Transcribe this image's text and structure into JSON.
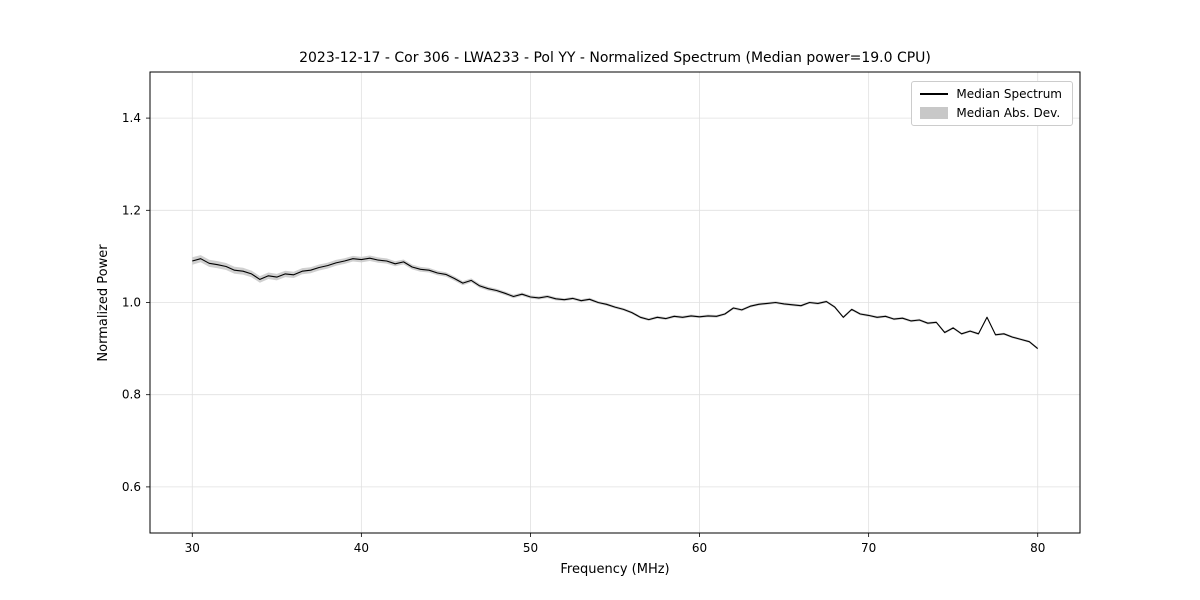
{
  "figure": {
    "title": "2023-12-17 - Cor 306 - LWA233 - Pol YY - Normalized Spectrum (Median power=19.0 CPU)",
    "xlabel": "Frequency (MHz)",
    "ylabel": "Normalized Power"
  },
  "legend": {
    "entries": [
      {
        "label": "Median Spectrum",
        "type": "line",
        "color": "#000000"
      },
      {
        "label": "Median Abs. Dev.",
        "type": "patch",
        "color": "#c8c8c8"
      }
    ]
  },
  "chart_data": {
    "type": "line",
    "title": "2023-12-17 - Cor 306 - LWA233 - Pol YY - Normalized Spectrum (Median power=19.0 CPU)",
    "xlabel": "Frequency (MHz)",
    "ylabel": "Normalized Power",
    "xlim": [
      27.5,
      82.5
    ],
    "ylim": [
      0.5,
      1.5
    ],
    "xticks": [
      30,
      40,
      50,
      60,
      70,
      80
    ],
    "yticks": [
      0.6,
      0.8,
      1.0,
      1.2,
      1.4
    ],
    "grid": true,
    "grid_color": "#e0e0e0",
    "line_color": "#000000",
    "band_color": "#c8c8c8",
    "series": [
      {
        "name": "Median Spectrum",
        "x_start": 30.0,
        "x_step": 0.5,
        "y": [
          1.09,
          1.095,
          1.085,
          1.082,
          1.078,
          1.07,
          1.068,
          1.062,
          1.05,
          1.058,
          1.055,
          1.062,
          1.06,
          1.068,
          1.07,
          1.076,
          1.08,
          1.086,
          1.09,
          1.095,
          1.093,
          1.096,
          1.092,
          1.09,
          1.084,
          1.088,
          1.077,
          1.072,
          1.07,
          1.064,
          1.061,
          1.052,
          1.042,
          1.048,
          1.036,
          1.03,
          1.026,
          1.02,
          1.013,
          1.018,
          1.012,
          1.01,
          1.013,
          1.008,
          1.006,
          1.009,
          1.004,
          1.007,
          1.0,
          0.996,
          0.99,
          0.985,
          0.978,
          0.968,
          0.963,
          0.968,
          0.965,
          0.97,
          0.968,
          0.971,
          0.969,
          0.971,
          0.97,
          0.975,
          0.988,
          0.984,
          0.992,
          0.996,
          0.998,
          1.0,
          0.997,
          0.995,
          0.993,
          1.0,
          0.998,
          1.002,
          0.99,
          0.968,
          0.985,
          0.975,
          0.972,
          0.968,
          0.97,
          0.964,
          0.966,
          0.96,
          0.962,
          0.955,
          0.957,
          0.935,
          0.945,
          0.932,
          0.938,
          0.932,
          0.968,
          0.93,
          0.932,
          0.925,
          0.92,
          0.915,
          0.9
        ]
      }
    ],
    "band": {
      "name": "Median Abs. Dev.",
      "x": [
        30,
        40,
        50,
        55,
        80
      ],
      "halfwidth": [
        0.008,
        0.006,
        0.0035,
        0.003,
        0.0025
      ]
    }
  }
}
